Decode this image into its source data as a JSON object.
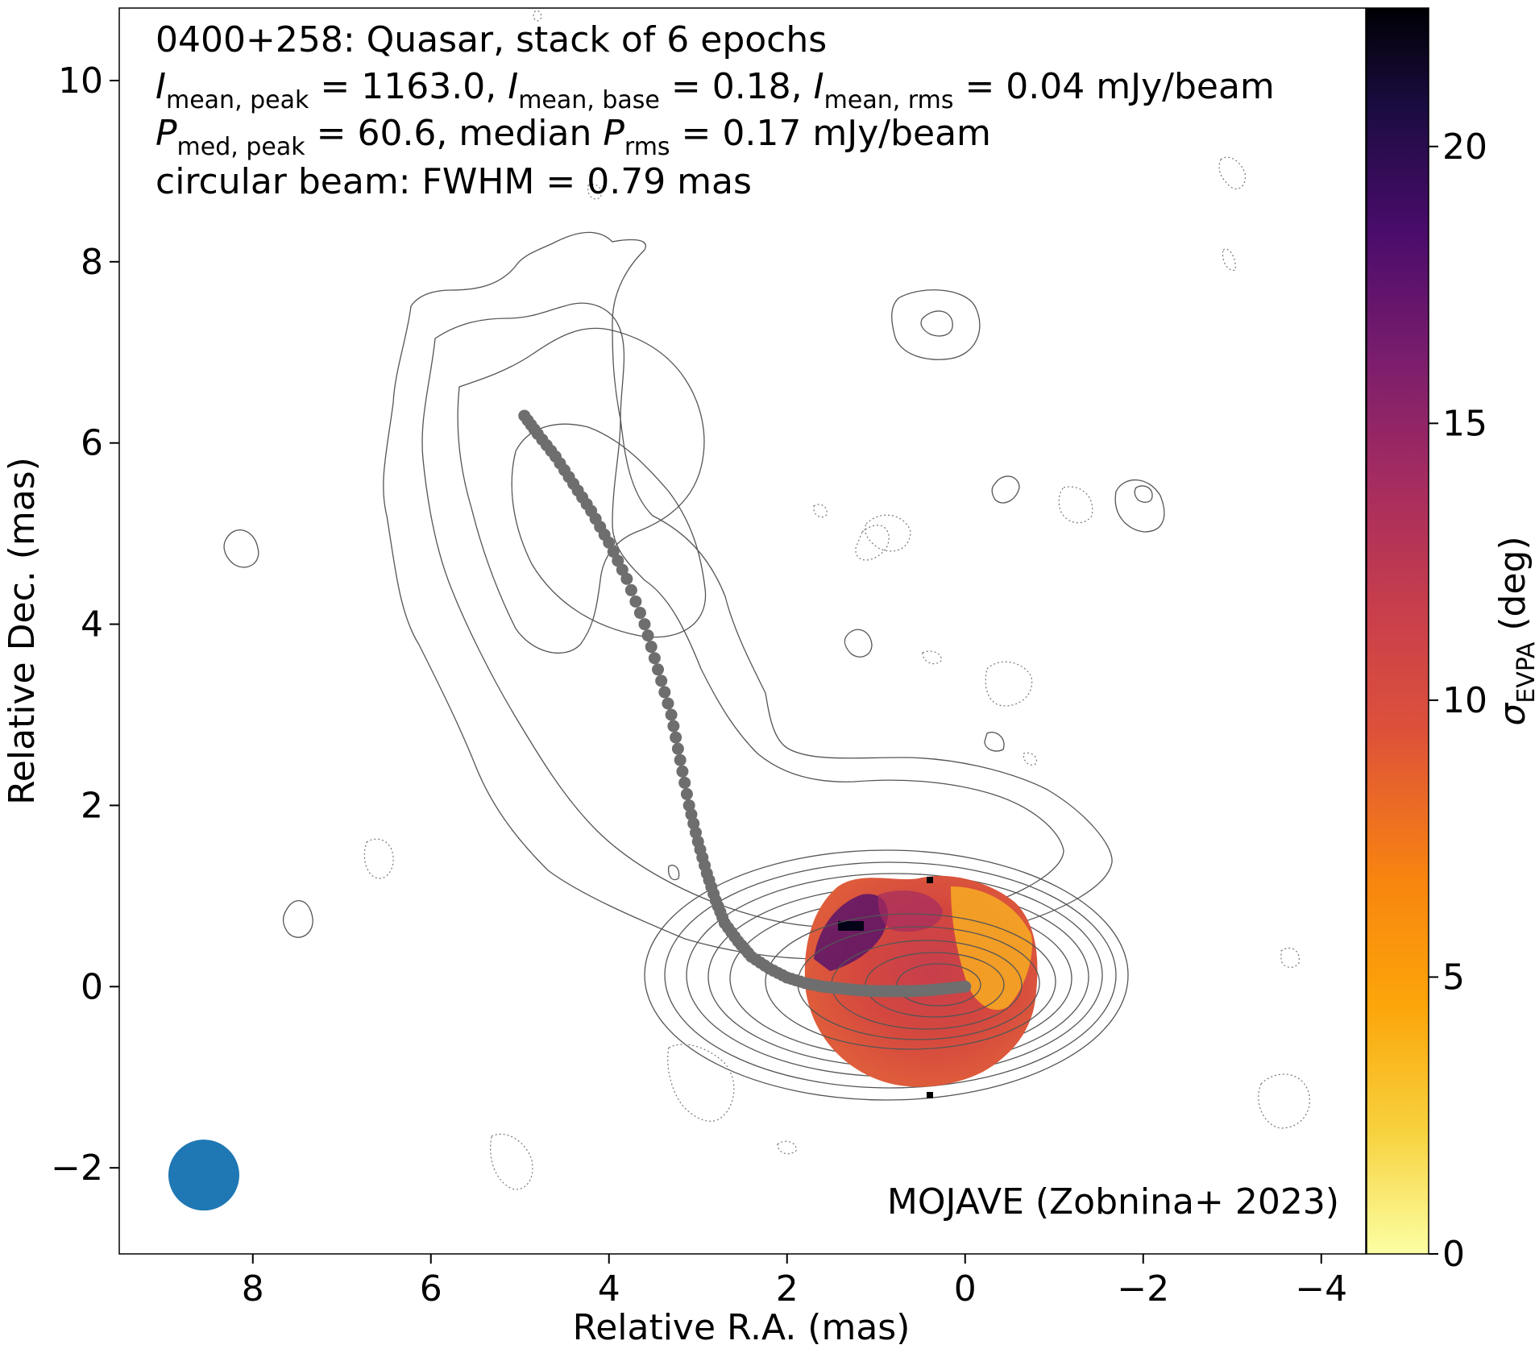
{
  "annotations": {
    "line1": "0400+258: Quasar, stack of 6 epochs",
    "line2": {
      "i_peak_sub": "mean, peak",
      "i_peak_value": "1163.0",
      "i_base_sub": "mean, base",
      "i_base_value": "0.18",
      "i_rms_sub": "mean, rms",
      "i_rms_value": "0.04 mJy/beam"
    },
    "line3": {
      "p_peak_sub": "med, peak",
      "p_peak_value": "60.6",
      "p_rms_prefix": "median",
      "p_rms_sub": "rms",
      "p_rms_value": "0.17 mJy/beam"
    },
    "line4": "circular beam: FWHM = 0.79 mas",
    "credit": "MOJAVE (Zobnina+ 2023)"
  },
  "colors": {
    "beam": "#1f77b4",
    "ridge": "#6e6e6e",
    "contour": "#555555",
    "colormap": [
      "#fcffa4",
      "#f7d13d",
      "#fca50a",
      "#f8850f",
      "#dd513a",
      "#c73e4c",
      "#a52c60",
      "#7a1d6d",
      "#4a0c6b",
      "#1b0c41",
      "#000004"
    ]
  },
  "chart_data": {
    "type": "image",
    "description_fields": "contour map with polarization color overlay",
    "xlabel": "Relative R.A. (mas)",
    "ylabel": "Relative Dec. (mas)",
    "xlim": [
      9.5,
      -4.5
    ],
    "ylim": [
      -2.95,
      10.8
    ],
    "xticks": [
      8,
      6,
      4,
      2,
      0,
      -2,
      -4
    ],
    "yticks": [
      -2,
      0,
      2,
      4,
      6,
      8,
      10
    ],
    "colorbar": {
      "label_symbol": "σ",
      "label_sub": "EVPA",
      "label_unit": "(deg)",
      "range": [
        0,
        22.5
      ],
      "ticks": [
        0,
        5,
        10,
        15,
        20
      ]
    },
    "beam": {
      "x": 8.55,
      "y": -2.08,
      "fwhm_mas": 0.79
    },
    "ridge_line": {
      "x": [
        4.95,
        4.8,
        4.6,
        4.4,
        4.2,
        4.0,
        3.8,
        3.6,
        3.45,
        3.3,
        3.2,
        3.1,
        3.0,
        2.9,
        2.8,
        2.7,
        2.55,
        2.4,
        2.2,
        2.0,
        1.8,
        1.6,
        1.4,
        1.2,
        1.0,
        0.8,
        0.6,
        0.4,
        0.2,
        0.0
      ],
      "y": [
        6.3,
        6.1,
        5.85,
        5.55,
        5.25,
        4.9,
        4.5,
        4.0,
        3.5,
        3.0,
        2.5,
        2.0,
        1.6,
        1.25,
        0.95,
        0.7,
        0.5,
        0.33,
        0.2,
        0.1,
        0.04,
        0.0,
        -0.02,
        -0.04,
        -0.05,
        -0.05,
        -0.05,
        -0.04,
        -0.02,
        0.0
      ]
    },
    "core_sigma_evpa": {
      "center_x": 0.6,
      "center_y": 0.0,
      "typical_deg": 10,
      "range_deg": [
        3,
        22
      ]
    }
  }
}
